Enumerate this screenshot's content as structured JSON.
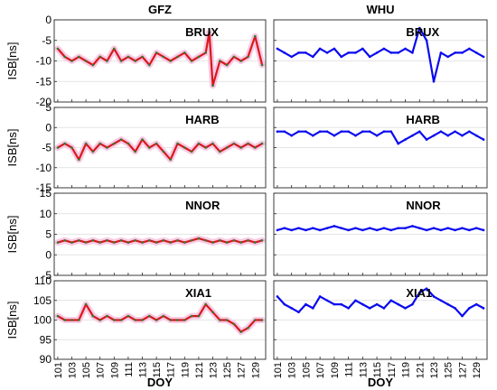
{
  "chart_data": {
    "type": "line",
    "panels_layout": "4 rows x 2 columns",
    "columns": [
      "GFZ",
      "WHU"
    ],
    "xlabel": "DOY",
    "ylabel": "ISB[ns]",
    "xlim": [
      100.5,
      130.5
    ],
    "xticks": [
      101,
      103,
      105,
      107,
      109,
      111,
      113,
      115,
      117,
      119,
      121,
      123,
      125,
      127,
      129
    ],
    "grid": "horizontal",
    "colors": {
      "GFZ": "#d7191c",
      "GFZ_dots": "#2e7d32",
      "GFZ_band": "#f9c9e4",
      "WHU": "#0a0af0"
    },
    "rows": [
      {
        "station": "BRUX",
        "ylim": [
          -20,
          0
        ],
        "yticks": [
          -20,
          -15,
          -10,
          -5,
          0
        ],
        "series": [
          {
            "column": "GFZ",
            "x": [
              101,
              102,
              103,
              104,
              105,
              106,
              107,
              108,
              109,
              110,
              111,
              112,
              113,
              114,
              115,
              116,
              117,
              118,
              119,
              120,
              121,
              122,
              122.5,
              123,
              124,
              125,
              126,
              127,
              128,
              129,
              130
            ],
            "y": [
              -7,
              -9,
              -10,
              -9,
              -10,
              -11,
              -9,
              -10,
              -7,
              -10,
              -9,
              -10,
              -9,
              -11,
              -8,
              -9,
              -10,
              -9,
              -8,
              -10,
              -9,
              -8,
              -3,
              -16,
              -10,
              -11,
              -9,
              -10,
              -9,
              -4,
              -11
            ]
          },
          {
            "column": "WHU",
            "x": [
              101,
              102,
              103,
              104,
              105,
              106,
              107,
              108,
              109,
              110,
              111,
              112,
              113,
              114,
              115,
              116,
              117,
              118,
              119,
              120,
              121,
              122,
              123,
              124,
              125,
              126,
              127,
              128,
              129,
              130
            ],
            "y": [
              -7,
              -8,
              -9,
              -8,
              -8,
              -9,
              -7,
              -8,
              -7,
              -9,
              -8,
              -8,
              -7,
              -9,
              -8,
              -7,
              -8,
              -8,
              -7,
              -8,
              -2,
              -5,
              -15,
              -8,
              -9,
              -8,
              -8,
              -7,
              -8,
              -9
            ]
          }
        ]
      },
      {
        "station": "HARB",
        "ylim": [
          -15,
          5
        ],
        "yticks": [
          -15,
          -10,
          -5,
          0,
          5
        ],
        "series": [
          {
            "column": "GFZ",
            "x": [
              101,
              102,
              103,
              104,
              105,
              106,
              107,
              108,
              109,
              110,
              111,
              112,
              113,
              114,
              115,
              116,
              117,
              118,
              119,
              120,
              121,
              122,
              123,
              124,
              125,
              126,
              127,
              128,
              129,
              130
            ],
            "y": [
              -5,
              -4,
              -5,
              -8,
              -4,
              -6,
              -4,
              -5,
              -4,
              -3,
              -4,
              -6,
              -3,
              -5,
              -4,
              -6,
              -8,
              -4,
              -5,
              -6,
              -4,
              -5,
              -4,
              -6,
              -5,
              -4,
              -5,
              -4,
              -5,
              -4
            ]
          },
          {
            "column": "WHU",
            "x": [
              101,
              102,
              103,
              104,
              105,
              106,
              107,
              108,
              109,
              110,
              111,
              112,
              113,
              114,
              115,
              116,
              117,
              118,
              119,
              120,
              121,
              122,
              123,
              124,
              125,
              126,
              127,
              128,
              129,
              130
            ],
            "y": [
              -1,
              -1,
              -2,
              -1,
              -1,
              -2,
              -1,
              -1,
              -2,
              -1,
              -1,
              -2,
              -1,
              -1,
              -2,
              -1,
              -1,
              -4,
              -3,
              -2,
              -1,
              -3,
              -2,
              -1,
              -2,
              -1,
              -2,
              -1,
              -2,
              -3
            ]
          }
        ]
      },
      {
        "station": "NNOR",
        "ylim": [
          -5,
          15
        ],
        "yticks": [
          -5,
          0,
          5,
          10,
          15
        ],
        "series": [
          {
            "column": "GFZ",
            "x": [
              101,
              102,
              103,
              104,
              105,
              106,
              107,
              108,
              109,
              110,
              111,
              112,
              113,
              114,
              115,
              116,
              117,
              118,
              119,
              120,
              121,
              122,
              123,
              124,
              125,
              126,
              127,
              128,
              129,
              130
            ],
            "y": [
              3,
              3.5,
              3,
              3.5,
              3,
              3.5,
              3,
              3.5,
              3,
              3.5,
              3,
              3.5,
              3,
              3.5,
              3,
              3.5,
              3,
              3.5,
              3,
              3.5,
              4,
              3.5,
              3,
              3.5,
              3,
              3.5,
              3,
              3.5,
              3,
              3.5
            ]
          },
          {
            "column": "WHU",
            "x": [
              101,
              102,
              103,
              104,
              105,
              106,
              107,
              108,
              109,
              110,
              111,
              112,
              113,
              114,
              115,
              116,
              117,
              118,
              119,
              120,
              121,
              122,
              123,
              124,
              125,
              126,
              127,
              128,
              129,
              130
            ],
            "y": [
              6,
              6.5,
              6,
              6.5,
              6,
              6.5,
              6,
              6.5,
              7,
              6.5,
              6,
              6.5,
              6,
              6.5,
              6,
              6.5,
              6,
              6.5,
              6.5,
              7,
              6.5,
              6,
              6.5,
              6,
              6.5,
              6,
              6.5,
              6,
              6.5,
              6
            ]
          }
        ]
      },
      {
        "station": "XIA1",
        "ylim": [
          90,
          110
        ],
        "yticks": [
          90,
          95,
          100,
          105,
          110
        ],
        "series": [
          {
            "column": "GFZ",
            "x": [
              101,
              102,
              103,
              104,
              105,
              106,
              107,
              108,
              109,
              110,
              111,
              112,
              113,
              114,
              115,
              116,
              117,
              118,
              119,
              120,
              121,
              122,
              123,
              124,
              125,
              126,
              127,
              128,
              129,
              130
            ],
            "y": [
              101,
              100,
              100,
              100,
              104,
              101,
              100,
              101,
              100,
              100,
              101,
              100,
              100,
              101,
              100,
              101,
              100,
              100,
              100,
              101,
              101,
              104,
              102,
              100,
              100,
              99,
              97,
              98,
              100,
              100
            ]
          },
          {
            "column": "WHU",
            "x": [
              101,
              102,
              103,
              104,
              105,
              106,
              107,
              108,
              109,
              110,
              111,
              112,
              113,
              114,
              115,
              116,
              117,
              118,
              119,
              120,
              121,
              122,
              123,
              124,
              125,
              126,
              127,
              128,
              129,
              130
            ],
            "y": [
              106,
              104,
              103,
              102,
              104,
              103,
              106,
              105,
              104,
              104,
              103,
              105,
              104,
              103,
              104,
              103,
              105,
              104,
              103,
              104,
              107,
              108,
              106,
              105,
              104,
              103,
              101,
              103,
              104,
              103
            ]
          }
        ]
      }
    ]
  }
}
